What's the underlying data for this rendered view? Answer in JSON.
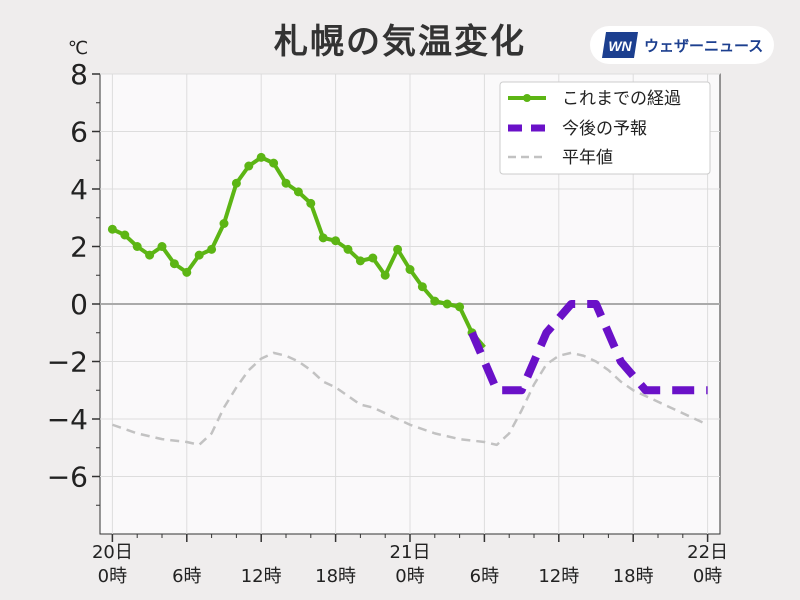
{
  "title": "札幌の気温変化",
  "brand": {
    "logo_text": "WN",
    "name": "ウェザーニュース"
  },
  "chart_data": {
    "type": "line",
    "title": "札幌の気温変化",
    "unit": "℃",
    "ylim": [
      -8,
      8
    ],
    "yticks": [
      8,
      6,
      4,
      2,
      0,
      -2,
      -4,
      -6
    ],
    "ytick_labels": [
      "8",
      "6",
      "4",
      "2",
      "0",
      "−2",
      "−4",
      "−6"
    ],
    "xlim": [
      -1,
      49
    ],
    "xticks": [
      {
        "x": 0,
        "line1": "20日",
        "line2": "0時"
      },
      {
        "x": 6,
        "line1": "",
        "line2": "6時"
      },
      {
        "x": 12,
        "line1": "",
        "line2": "12時"
      },
      {
        "x": 18,
        "line1": "",
        "line2": "18時"
      },
      {
        "x": 24,
        "line1": "21日",
        "line2": "0時"
      },
      {
        "x": 30,
        "line1": "",
        "line2": "6時"
      },
      {
        "x": 36,
        "line1": "",
        "line2": "12時"
      },
      {
        "x": 42,
        "line1": "",
        "line2": "18時"
      },
      {
        "x": 48,
        "line1": "22日",
        "line2": "0時"
      }
    ],
    "grid": true,
    "legend_position": "top-right",
    "series": [
      {
        "name": "これまでの経過",
        "color": "#5cb514",
        "style": "solid-markers",
        "x": [
          0,
          1,
          2,
          3,
          4,
          5,
          6,
          7,
          8,
          9,
          10,
          11,
          12,
          13,
          14,
          15,
          16,
          17,
          18,
          19,
          20,
          21,
          22,
          23,
          24,
          25,
          26,
          27,
          28,
          29,
          30
        ],
        "y": [
          2.6,
          2.4,
          2.0,
          1.7,
          2.0,
          1.4,
          1.1,
          1.7,
          1.9,
          2.8,
          4.2,
          4.8,
          5.1,
          4.9,
          4.2,
          3.9,
          3.5,
          2.3,
          2.2,
          1.9,
          1.5,
          1.6,
          1.0,
          1.9,
          1.2,
          0.6,
          0.1,
          0.0,
          -0.1,
          -1.0,
          -1.5
        ]
      },
      {
        "name": "今後の予報",
        "color": "#6a11c8",
        "style": "dashed-thick",
        "x": [
          29,
          31,
          33,
          35,
          37,
          39,
          41,
          43,
          45,
          48
        ],
        "y": [
          -1.0,
          -3.0,
          -3.0,
          -1.0,
          0.0,
          0.0,
          -2.0,
          -3.0,
          -3.0,
          -3.0
        ]
      },
      {
        "name": "平年値",
        "color": "#c2c2c2",
        "style": "dashed-thin",
        "x": [
          0,
          2,
          4,
          6,
          7,
          8,
          9,
          10,
          11,
          12,
          13,
          14,
          15,
          16,
          17,
          18,
          19,
          20,
          21,
          22,
          23,
          24,
          26,
          28,
          30,
          31,
          32,
          33,
          34,
          35,
          36,
          37,
          38,
          39,
          40,
          41,
          42,
          44,
          46,
          48
        ],
        "y": [
          -4.2,
          -4.5,
          -4.7,
          -4.8,
          -4.9,
          -4.5,
          -3.6,
          -2.9,
          -2.3,
          -1.9,
          -1.7,
          -1.8,
          -2.0,
          -2.3,
          -2.7,
          -2.9,
          -3.2,
          -3.5,
          -3.6,
          -3.8,
          -4.0,
          -4.2,
          -4.5,
          -4.7,
          -4.8,
          -4.9,
          -4.5,
          -3.7,
          -2.8,
          -2.1,
          -1.8,
          -1.7,
          -1.8,
          -2.0,
          -2.3,
          -2.7,
          -3.0,
          -3.4,
          -3.8,
          -4.2
        ]
      }
    ]
  }
}
